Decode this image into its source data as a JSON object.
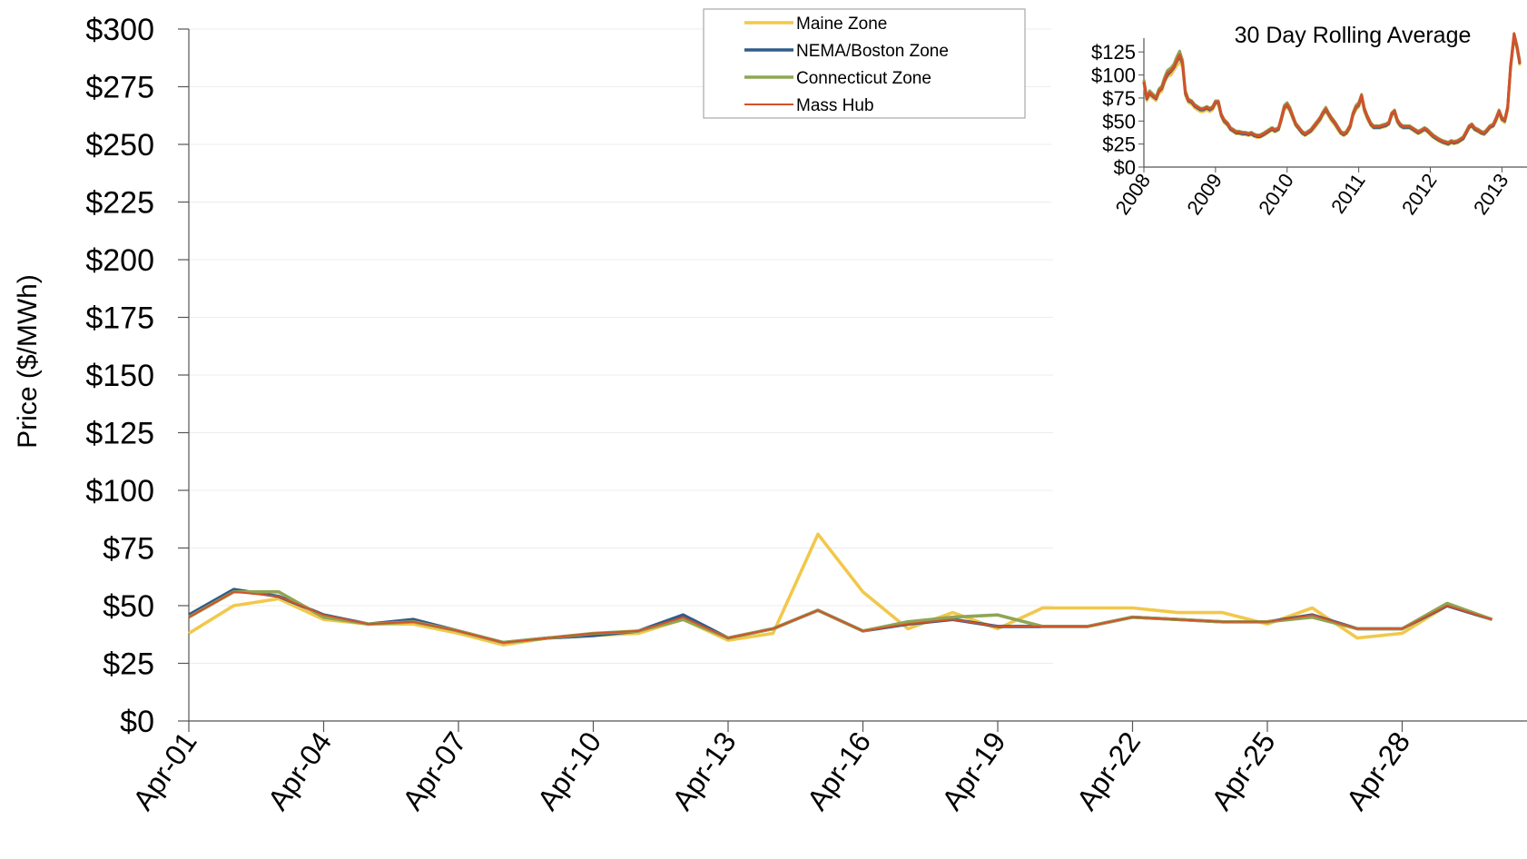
{
  "chart_data": [
    {
      "type": "line",
      "title": "",
      "xlabel": "",
      "ylabel": "Price ($/MWh)",
      "ylim": [
        0,
        300
      ],
      "yticks": [
        "$0",
        "$25",
        "$50",
        "$75",
        "$100",
        "$125",
        "$150",
        "$175",
        "$200",
        "$225",
        "$250",
        "$275",
        "$300"
      ],
      "x": [
        "Apr-01",
        "Apr-02",
        "Apr-03",
        "Apr-04",
        "Apr-05",
        "Apr-06",
        "Apr-07",
        "Apr-08",
        "Apr-09",
        "Apr-10",
        "Apr-11",
        "Apr-12",
        "Apr-13",
        "Apr-14",
        "Apr-15",
        "Apr-16",
        "Apr-17",
        "Apr-18",
        "Apr-19",
        "Apr-20",
        "Apr-21",
        "Apr-22",
        "Apr-23",
        "Apr-24",
        "Apr-25",
        "Apr-26",
        "Apr-27",
        "Apr-28",
        "Apr-29",
        "Apr-30"
      ],
      "xticks": [
        "Apr-01",
        "Apr-04",
        "Apr-07",
        "Apr-10",
        "Apr-13",
        "Apr-16",
        "Apr-19",
        "Apr-22",
        "Apr-25",
        "Apr-28"
      ],
      "grid": true,
      "legend": "top-center",
      "series": [
        {
          "name": "Maine Zone",
          "color": "#f2c84b",
          "values": [
            38,
            50,
            53,
            44,
            42,
            42,
            38,
            33,
            36,
            37,
            38,
            44,
            35,
            38,
            81,
            56,
            40,
            47,
            40,
            49,
            49,
            49,
            47,
            47,
            42,
            49,
            36,
            38,
            50,
            44
          ]
        },
        {
          "name": "NEMA/Boston Zone",
          "color": "#2f5d8a",
          "values": [
            46,
            57,
            54,
            46,
            42,
            44,
            39,
            34,
            36,
            37,
            39,
            46,
            36,
            40,
            48,
            39,
            42,
            44,
            41,
            41,
            41,
            45,
            44,
            43,
            43,
            46,
            40,
            40,
            50,
            44
          ]
        },
        {
          "name": "Connecticut Zone",
          "color": "#8ea655",
          "values": [
            45,
            56,
            56,
            45,
            42,
            43,
            39,
            34,
            36,
            38,
            39,
            44,
            36,
            40,
            48,
            39,
            43,
            45,
            46,
            41,
            41,
            45,
            44,
            43,
            43,
            45,
            40,
            40,
            51,
            44
          ]
        },
        {
          "name": "Mass Hub",
          "color": "#d4512a",
          "values": [
            45,
            56,
            54,
            46,
            42,
            43,
            39,
            34,
            36,
            38,
            39,
            45,
            36,
            40,
            48,
            39,
            42,
            44,
            41,
            41,
            41,
            45,
            44,
            43,
            43,
            46,
            40,
            40,
            50,
            44
          ]
        }
      ]
    },
    {
      "type": "line",
      "title": "30 Day Rolling Average",
      "xlabel": "",
      "ylabel": "",
      "ylim": [
        0,
        140
      ],
      "xlim": [
        2008,
        2013.35
      ],
      "yticks": [
        "$0",
        "$25",
        "$50",
        "$75",
        "$100",
        "$125"
      ],
      "xticks": [
        "2008",
        "2009",
        "2010",
        "2011",
        "2012",
        "2013"
      ],
      "grid": false,
      "x": [
        2008.0,
        2008.04,
        2008.08,
        2008.12,
        2008.17,
        2008.21,
        2008.25,
        2008.29,
        2008.33,
        2008.38,
        2008.42,
        2008.46,
        2008.5,
        2008.54,
        2008.58,
        2008.62,
        2008.67,
        2008.71,
        2008.75,
        2008.79,
        2008.83,
        2008.88,
        2008.92,
        2008.96,
        2009.0,
        2009.04,
        2009.08,
        2009.12,
        2009.17,
        2009.21,
        2009.25,
        2009.29,
        2009.33,
        2009.38,
        2009.42,
        2009.46,
        2009.5,
        2009.54,
        2009.58,
        2009.62,
        2009.67,
        2009.71,
        2009.75,
        2009.79,
        2009.83,
        2009.88,
        2009.92,
        2009.96,
        2010.0,
        2010.04,
        2010.08,
        2010.12,
        2010.17,
        2010.21,
        2010.25,
        2010.29,
        2010.33,
        2010.38,
        2010.42,
        2010.46,
        2010.5,
        2010.54,
        2010.58,
        2010.62,
        2010.67,
        2010.71,
        2010.75,
        2010.79,
        2010.83,
        2010.88,
        2010.92,
        2010.96,
        2011.0,
        2011.04,
        2011.08,
        2011.12,
        2011.17,
        2011.21,
        2011.25,
        2011.29,
        2011.33,
        2011.38,
        2011.42,
        2011.46,
        2011.5,
        2011.54,
        2011.58,
        2011.62,
        2011.67,
        2011.71,
        2011.75,
        2011.79,
        2011.83,
        2011.88,
        2011.92,
        2011.96,
        2012.0,
        2012.04,
        2012.08,
        2012.12,
        2012.17,
        2012.21,
        2012.25,
        2012.29,
        2012.33,
        2012.38,
        2012.42,
        2012.46,
        2012.5,
        2012.54,
        2012.58,
        2012.62,
        2012.67,
        2012.71,
        2012.75,
        2012.79,
        2012.83,
        2012.88,
        2012.92,
        2012.96,
        2013.0,
        2013.04,
        2013.08,
        2013.12,
        2013.17,
        2013.21,
        2013.25
      ],
      "series": [
        {
          "name": "Maine Zone",
          "color": "#f2c84b",
          "values": [
            92,
            72,
            78,
            75,
            72,
            80,
            82,
            92,
            98,
            100,
            105,
            110,
            115,
            108,
            78,
            70,
            68,
            64,
            62,
            60,
            60,
            62,
            60,
            62,
            68,
            68,
            55,
            48,
            45,
            40,
            38,
            36,
            36,
            35,
            35,
            34,
            35,
            33,
            32,
            32,
            34,
            36,
            38,
            40,
            38,
            40,
            50,
            62,
            65,
            60,
            52,
            45,
            40,
            36,
            34,
            36,
            38,
            42,
            46,
            50,
            56,
            60,
            55,
            50,
            45,
            40,
            36,
            34,
            36,
            42,
            55,
            62,
            65,
            75,
            60,
            52,
            45,
            42,
            42,
            42,
            43,
            44,
            46,
            55,
            58,
            48,
            44,
            42,
            42,
            42,
            40,
            38,
            36,
            38,
            40,
            38,
            35,
            32,
            30,
            28,
            26,
            25,
            24,
            26,
            25,
            26,
            28,
            30,
            36,
            42,
            44,
            40,
            38,
            36,
            35,
            38,
            42,
            44,
            50,
            58,
            50,
            48,
            62,
            105,
            140,
            128,
            110
          ]
        },
        {
          "name": "NEMA/Boston Zone",
          "color": "#2f5d8a",
          "values": [
            92,
            74,
            80,
            77,
            74,
            82,
            85,
            94,
            100,
            104,
            108,
            115,
            120,
            112,
            80,
            72,
            70,
            66,
            64,
            62,
            62,
            64,
            62,
            64,
            70,
            70,
            56,
            50,
            46,
            41,
            39,
            37,
            37,
            36,
            36,
            35,
            36,
            34,
            33,
            33,
            35,
            37,
            39,
            41,
            39,
            41,
            52,
            64,
            67,
            62,
            54,
            46,
            41,
            37,
            35,
            37,
            39,
            44,
            48,
            52,
            58,
            62,
            57,
            52,
            47,
            42,
            37,
            35,
            37,
            44,
            57,
            64,
            67,
            77,
            62,
            54,
            46,
            43,
            43,
            43,
            44,
            45,
            47,
            57,
            60,
            50,
            45,
            43,
            43,
            43,
            41,
            39,
            37,
            39,
            41,
            39,
            36,
            33,
            31,
            29,
            27,
            26,
            25,
            27,
            26,
            27,
            29,
            31,
            37,
            43,
            45,
            41,
            39,
            37,
            36,
            39,
            43,
            45,
            52,
            60,
            52,
            50,
            64,
            108,
            142,
            130,
            112
          ]
        },
        {
          "name": "Connecticut Zone",
          "color": "#8ea655",
          "values": [
            95,
            76,
            83,
            80,
            76,
            85,
            88,
            98,
            105,
            108,
            112,
            120,
            126,
            116,
            83,
            74,
            72,
            68,
            66,
            64,
            64,
            66,
            64,
            66,
            72,
            72,
            58,
            52,
            48,
            43,
            41,
            39,
            39,
            38,
            38,
            37,
            38,
            36,
            35,
            35,
            37,
            39,
            41,
            43,
            41,
            43,
            54,
            67,
            70,
            65,
            56,
            48,
            43,
            39,
            37,
            39,
            41,
            46,
            50,
            54,
            60,
            65,
            59,
            54,
            49,
            44,
            39,
            37,
            39,
            46,
            59,
            67,
            70,
            79,
            64,
            56,
            48,
            45,
            45,
            45,
            46,
            47,
            49,
            59,
            62,
            52,
            47,
            45,
            45,
            45,
            43,
            41,
            39,
            41,
            43,
            41,
            38,
            35,
            33,
            31,
            29,
            28,
            27,
            29,
            28,
            29,
            31,
            33,
            39,
            45,
            47,
            43,
            41,
            39,
            38,
            41,
            45,
            47,
            54,
            62,
            54,
            52,
            66,
            110,
            144,
            132,
            115
          ]
        },
        {
          "name": "Mass Hub",
          "color": "#d4512a",
          "values": [
            93,
            75,
            81,
            78,
            75,
            83,
            86,
            95,
            102,
            105,
            109,
            116,
            122,
            113,
            81,
            73,
            71,
            67,
            65,
            63,
            63,
            65,
            63,
            65,
            71,
            71,
            57,
            51,
            47,
            42,
            40,
            38,
            38,
            37,
            37,
            36,
            37,
            35,
            34,
            34,
            36,
            38,
            40,
            42,
            40,
            42,
            53,
            65,
            68,
            63,
            55,
            47,
            42,
            38,
            36,
            38,
            40,
            45,
            49,
            53,
            59,
            63,
            58,
            53,
            48,
            43,
            38,
            36,
            38,
            45,
            58,
            65,
            68,
            78,
            63,
            55,
            47,
            44,
            44,
            44,
            45,
            46,
            48,
            58,
            61,
            51,
            46,
            44,
            44,
            44,
            42,
            40,
            38,
            40,
            42,
            40,
            37,
            34,
            32,
            30,
            28,
            27,
            26,
            28,
            27,
            28,
            30,
            32,
            38,
            44,
            46,
            42,
            40,
            38,
            37,
            40,
            44,
            46,
            53,
            61,
            53,
            51,
            65,
            110,
            145,
            131,
            113
          ]
        }
      ]
    }
  ]
}
